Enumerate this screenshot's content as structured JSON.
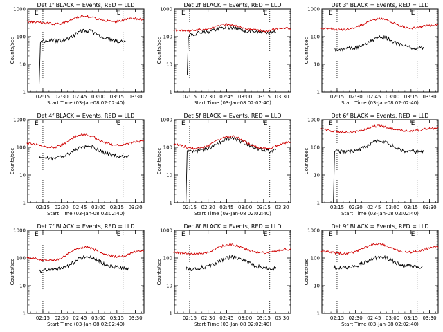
{
  "figure": {
    "legend_note": "BLACK = Events, RED = LLD"
  },
  "chart_data": [
    {
      "type": "line",
      "title": "Det 1f BLACK = Events, RED = LLD",
      "xlabel": "Start Time (03-Jan-08 02:02:40)",
      "ylabel": "Counts/sec",
      "y_scale": "log",
      "ylim": [
        1,
        1000
      ],
      "x_tick_labels": [
        "02:15",
        "02:30",
        "02:45",
        "03:00",
        "03:15",
        "03:30"
      ],
      "y_tick_labels": [
        "1",
        "10",
        "100",
        "1000"
      ],
      "markers": [
        "02:15",
        "03:20"
      ],
      "flag_labels": [
        "E",
        "E"
      ],
      "series": [
        {
          "color": "#000000",
          "x": [
            "02:12",
            "02:13",
            "02:15",
            "02:20",
            "02:25",
            "02:30",
            "02:35",
            "02:40",
            "02:45",
            "02:50",
            "02:55",
            "03:00",
            "03:05",
            "03:10",
            "03:15",
            "03:20",
            "03:22"
          ],
          "y": [
            2,
            60,
            70,
            70,
            72,
            75,
            85,
            110,
            150,
            170,
            150,
            115,
            90,
            75,
            70,
            68,
            70
          ]
        },
        {
          "color": "#d00000",
          "x": [
            "02:02",
            "02:10",
            "02:15",
            "02:20",
            "02:25",
            "02:30",
            "02:35",
            "02:40",
            "02:45",
            "02:50",
            "02:55",
            "03:00",
            "03:05",
            "03:10",
            "03:15",
            "03:20",
            "03:25",
            "03:30",
            "03:37"
          ],
          "y": [
            350,
            340,
            320,
            300,
            290,
            300,
            350,
            450,
            550,
            550,
            500,
            420,
            380,
            360,
            350,
            400,
            450,
            450,
            400
          ]
        }
      ]
    },
    {
      "type": "line",
      "title": "Det 2f BLACK = Events, RED = LLD",
      "xlabel": "Start Time (03-Jan-08 02:02:40)",
      "ylabel": "Counts/sec",
      "y_scale": "log",
      "ylim": [
        1,
        1000
      ],
      "x_tick_labels": [
        "02:15",
        "02:30",
        "02:45",
        "03:00",
        "03:15",
        "03:30"
      ],
      "y_tick_labels": [
        "1",
        "10",
        "100",
        "1000"
      ],
      "markers": [
        "02:15",
        "03:20"
      ],
      "flag_labels": [
        "E",
        "E"
      ],
      "series": [
        {
          "color": "#000000",
          "x": [
            "02:13",
            "02:14",
            "02:15",
            "02:20",
            "02:25",
            "02:30",
            "02:35",
            "02:40",
            "02:45",
            "02:50",
            "02:55",
            "03:00",
            "03:05",
            "03:10",
            "03:15",
            "03:20",
            "03:25"
          ],
          "y": [
            4,
            100,
            120,
            130,
            140,
            150,
            170,
            200,
            220,
            210,
            180,
            160,
            150,
            140,
            140,
            140,
            140
          ]
        },
        {
          "color": "#d00000",
          "x": [
            "02:02",
            "02:10",
            "02:15",
            "02:20",
            "02:25",
            "02:30",
            "02:35",
            "02:40",
            "02:45",
            "02:50",
            "02:55",
            "03:00",
            "03:05",
            "03:10",
            "03:15",
            "03:20",
            "03:25",
            "03:30",
            "03:37"
          ],
          "y": [
            170,
            160,
            160,
            170,
            180,
            190,
            220,
            260,
            280,
            270,
            230,
            200,
            180,
            170,
            160,
            170,
            190,
            200,
            200
          ]
        }
      ]
    },
    {
      "type": "line",
      "title": "Det 3f BLACK = Events, RED = LLD",
      "xlabel": "Start Time (03-Jan-08 02:02:40)",
      "ylabel": "Counts/sec",
      "y_scale": "log",
      "ylim": [
        1,
        1000
      ],
      "x_tick_labels": [
        "02:15",
        "02:30",
        "02:45",
        "03:00",
        "03:15",
        "03:30"
      ],
      "y_tick_labels": [
        "1",
        "10",
        "100",
        "1000"
      ],
      "markers": [
        "02:15",
        "03:20"
      ],
      "flag_labels": [
        "E",
        "E"
      ],
      "series": [
        {
          "color": "#000000",
          "x": [
            "02:12",
            "02:15",
            "02:20",
            "02:25",
            "02:30",
            "02:35",
            "02:40",
            "02:45",
            "02:50",
            "02:55",
            "03:00",
            "03:05",
            "03:10",
            "03:15",
            "03:20",
            "03:25"
          ],
          "y": [
            35,
            35,
            35,
            38,
            40,
            45,
            60,
            80,
            95,
            90,
            70,
            55,
            45,
            40,
            38,
            38
          ]
        },
        {
          "color": "#d00000",
          "x": [
            "02:02",
            "02:10",
            "02:15",
            "02:20",
            "02:25",
            "02:30",
            "02:35",
            "02:40",
            "02:45",
            "02:50",
            "02:55",
            "03:00",
            "03:05",
            "03:10",
            "03:15",
            "03:20",
            "03:25",
            "03:30",
            "03:37"
          ],
          "y": [
            200,
            190,
            180,
            180,
            190,
            210,
            260,
            340,
            420,
            450,
            400,
            320,
            260,
            220,
            200,
            210,
            240,
            260,
            260
          ]
        }
      ]
    },
    {
      "type": "line",
      "title": "Det 4f BLACK = Events, RED = LLD",
      "xlabel": "Start Time (03-Jan-08 02:02:40)",
      "ylabel": "Counts/sec",
      "y_scale": "log",
      "ylim": [
        1,
        1000
      ],
      "x_tick_labels": [
        "02:15",
        "02:30",
        "02:45",
        "03:00",
        "03:15",
        "03:30"
      ],
      "y_tick_labels": [
        "1",
        "10",
        "100",
        "1000"
      ],
      "markers": [
        "02:15",
        "03:20"
      ],
      "flag_labels": [
        "E",
        "E"
      ],
      "series": [
        {
          "color": "#000000",
          "x": [
            "02:12",
            "02:15",
            "02:20",
            "02:25",
            "02:30",
            "02:35",
            "02:40",
            "02:45",
            "02:50",
            "02:55",
            "03:00",
            "03:05",
            "03:10",
            "03:15",
            "03:20",
            "03:25"
          ],
          "y": [
            40,
            42,
            40,
            40,
            45,
            55,
            75,
            95,
            110,
            100,
            80,
            65,
            55,
            50,
            48,
            50
          ]
        },
        {
          "color": "#d00000",
          "x": [
            "02:02",
            "02:10",
            "02:15",
            "02:20",
            "02:25",
            "02:30",
            "02:35",
            "02:40",
            "02:45",
            "02:50",
            "02:55",
            "03:00",
            "03:05",
            "03:10",
            "03:15",
            "03:20",
            "03:25",
            "03:30",
            "03:37"
          ],
          "y": [
            140,
            130,
            110,
            100,
            100,
            120,
            160,
            220,
            280,
            290,
            250,
            190,
            150,
            130,
            120,
            120,
            140,
            160,
            160
          ]
        }
      ]
    },
    {
      "type": "line",
      "title": "Det 5f BLACK = Events, RED = LLD",
      "xlabel": "Start Time (03-Jan-08 02:02:40)",
      "ylabel": "Counts/sec",
      "y_scale": "log",
      "ylim": [
        1,
        1000
      ],
      "x_tick_labels": [
        "02:15",
        "02:30",
        "02:45",
        "03:00",
        "03:15",
        "03:30"
      ],
      "y_tick_labels": [
        "1",
        "10",
        "100",
        "1000"
      ],
      "markers": [
        "02:15",
        "03:20"
      ],
      "flag_labels": [
        "E",
        "E"
      ],
      "series": [
        {
          "color": "#000000",
          "x": [
            "02:12",
            "02:13",
            "02:15",
            "02:20",
            "02:25",
            "02:30",
            "02:35",
            "02:40",
            "02:45",
            "02:50",
            "02:55",
            "03:00",
            "03:05",
            "03:10",
            "03:15",
            "03:20",
            "03:25"
          ],
          "y": [
            1,
            70,
            75,
            75,
            80,
            90,
            120,
            160,
            200,
            210,
            180,
            140,
            110,
            90,
            80,
            75,
            75
          ]
        },
        {
          "color": "#d00000",
          "x": [
            "02:02",
            "02:10",
            "02:15",
            "02:20",
            "02:25",
            "02:30",
            "02:35",
            "02:40",
            "02:45",
            "02:50",
            "02:55",
            "03:00",
            "03:05",
            "03:10",
            "03:15",
            "03:20",
            "03:25",
            "03:30",
            "03:37"
          ],
          "y": [
            130,
            110,
            95,
            90,
            95,
            110,
            150,
            200,
            240,
            250,
            210,
            160,
            120,
            100,
            90,
            90,
            110,
            140,
            160
          ]
        }
      ]
    },
    {
      "type": "line",
      "title": "Det 6f BLACK = Events, RED = LLD",
      "xlabel": "Start Time (03-Jan-08 02:02:40)",
      "ylabel": "Counts/sec",
      "y_scale": "log",
      "ylim": [
        1,
        1000
      ],
      "x_tick_labels": [
        "02:15",
        "02:30",
        "02:45",
        "03:00",
        "03:15",
        "03:30"
      ],
      "y_tick_labels": [
        "1",
        "10",
        "100",
        "1000"
      ],
      "markers": [
        "02:15",
        "03:20"
      ],
      "flag_labels": [
        "E",
        "E"
      ],
      "series": [
        {
          "color": "#000000",
          "x": [
            "02:12",
            "02:13",
            "02:15",
            "02:20",
            "02:25",
            "02:30",
            "02:35",
            "02:40",
            "02:45",
            "02:50",
            "02:55",
            "03:00",
            "03:05",
            "03:10",
            "03:15",
            "03:20",
            "03:25"
          ],
          "y": [
            1,
            70,
            70,
            70,
            72,
            75,
            90,
            120,
            160,
            180,
            150,
            110,
            85,
            75,
            70,
            70,
            70
          ]
        },
        {
          "color": "#d00000",
          "x": [
            "02:02",
            "02:10",
            "02:15",
            "02:20",
            "02:25",
            "02:30",
            "02:35",
            "02:40",
            "02:45",
            "02:50",
            "02:55",
            "03:00",
            "03:05",
            "03:10",
            "03:15",
            "03:20",
            "03:25",
            "03:30",
            "03:37"
          ],
          "y": [
            450,
            400,
            370,
            350,
            350,
            370,
            420,
            500,
            580,
            600,
            540,
            460,
            420,
            390,
            380,
            400,
            450,
            480,
            500
          ]
        }
      ]
    },
    {
      "type": "line",
      "title": "Det 7f BLACK = Events, RED = LLD",
      "xlabel": "Start Time (03-Jan-08 02:02:40)",
      "ylabel": "Counts/sec",
      "y_scale": "log",
      "ylim": [
        1,
        1000
      ],
      "x_tick_labels": [
        "02:15",
        "02:30",
        "02:45",
        "03:00",
        "03:15",
        "03:30"
      ],
      "y_tick_labels": [
        "1",
        "10",
        "100",
        "1000"
      ],
      "markers": [
        "02:15",
        "03:20"
      ],
      "flag_labels": [
        "E",
        "E"
      ],
      "series": [
        {
          "color": "#000000",
          "x": [
            "02:12",
            "02:15",
            "02:20",
            "02:25",
            "02:30",
            "02:35",
            "02:40",
            "02:45",
            "02:50",
            "02:55",
            "03:00",
            "03:05",
            "03:10",
            "03:15",
            "03:20",
            "03:25"
          ],
          "y": [
            35,
            35,
            36,
            38,
            42,
            50,
            70,
            95,
            110,
            100,
            80,
            60,
            50,
            45,
            42,
            42
          ]
        },
        {
          "color": "#d00000",
          "x": [
            "02:02",
            "02:10",
            "02:15",
            "02:20",
            "02:25",
            "02:30",
            "02:35",
            "02:40",
            "02:45",
            "02:50",
            "02:55",
            "03:00",
            "03:05",
            "03:10",
            "03:15",
            "03:20",
            "03:25",
            "03:30",
            "03:37"
          ],
          "y": [
            110,
            95,
            85,
            80,
            85,
            100,
            140,
            190,
            240,
            250,
            220,
            170,
            140,
            120,
            110,
            115,
            140,
            170,
            180
          ]
        }
      ]
    },
    {
      "type": "line",
      "title": "Det 8f BLACK = Events, RED = LLD",
      "xlabel": "Start Time (03-Jan-08 02:02:40)",
      "ylabel": "Counts/sec",
      "y_scale": "log",
      "ylim": [
        1,
        1000
      ],
      "x_tick_labels": [
        "02:15",
        "02:30",
        "02:45",
        "03:00",
        "03:15",
        "03:30"
      ],
      "y_tick_labels": [
        "1",
        "10",
        "100",
        "1000"
      ],
      "markers": [
        "02:15",
        "03:20"
      ],
      "flag_labels": [
        "E",
        "E"
      ],
      "series": [
        {
          "color": "#000000",
          "x": [
            "02:12",
            "02:15",
            "02:20",
            "02:25",
            "02:30",
            "02:35",
            "02:40",
            "02:45",
            "02:50",
            "02:55",
            "03:00",
            "03:05",
            "03:10",
            "03:15",
            "03:20",
            "03:25"
          ],
          "y": [
            40,
            40,
            42,
            45,
            50,
            60,
            80,
            100,
            110,
            100,
            80,
            60,
            50,
            45,
            42,
            42
          ]
        },
        {
          "color": "#d00000",
          "x": [
            "02:02",
            "02:10",
            "02:15",
            "02:20",
            "02:25",
            "02:30",
            "02:35",
            "02:40",
            "02:45",
            "02:50",
            "02:55",
            "03:00",
            "03:05",
            "03:10",
            "03:15",
            "03:20",
            "03:25",
            "03:30",
            "03:37"
          ],
          "y": [
            160,
            150,
            140,
            140,
            145,
            160,
            200,
            260,
            300,
            300,
            260,
            210,
            180,
            160,
            155,
            160,
            180,
            200,
            210
          ]
        }
      ]
    },
    {
      "type": "line",
      "title": "Det 9f BLACK = Events, RED = LLD",
      "xlabel": "Start Time (03-Jan-08 02:02:40)",
      "ylabel": "Counts/sec",
      "y_scale": "log",
      "ylim": [
        1,
        1000
      ],
      "x_tick_labels": [
        "02:15",
        "02:30",
        "02:45",
        "03:00",
        "03:15",
        "03:30"
      ],
      "y_tick_labels": [
        "1",
        "10",
        "100",
        "1000"
      ],
      "markers": [
        "02:15",
        "03:20"
      ],
      "flag_labels": [
        "E",
        "E"
      ],
      "series": [
        {
          "color": "#000000",
          "x": [
            "02:12",
            "02:15",
            "02:20",
            "02:25",
            "02:30",
            "02:35",
            "02:40",
            "02:45",
            "02:50",
            "02:55",
            "03:00",
            "03:05",
            "03:10",
            "03:15",
            "03:20",
            "03:25"
          ],
          "y": [
            45,
            45,
            45,
            48,
            52,
            60,
            75,
            95,
            110,
            100,
            80,
            62,
            52,
            48,
            46,
            46
          ]
        },
        {
          "color": "#d00000",
          "x": [
            "02:02",
            "02:10",
            "02:15",
            "02:20",
            "02:25",
            "02:30",
            "02:35",
            "02:40",
            "02:45",
            "02:50",
            "02:55",
            "03:00",
            "03:05",
            "03:10",
            "03:15",
            "03:20",
            "03:25",
            "03:30",
            "03:37"
          ],
          "y": [
            180,
            160,
            150,
            145,
            150,
            170,
            210,
            270,
            310,
            310,
            270,
            220,
            190,
            170,
            160,
            170,
            200,
            230,
            250
          ]
        }
      ]
    }
  ]
}
